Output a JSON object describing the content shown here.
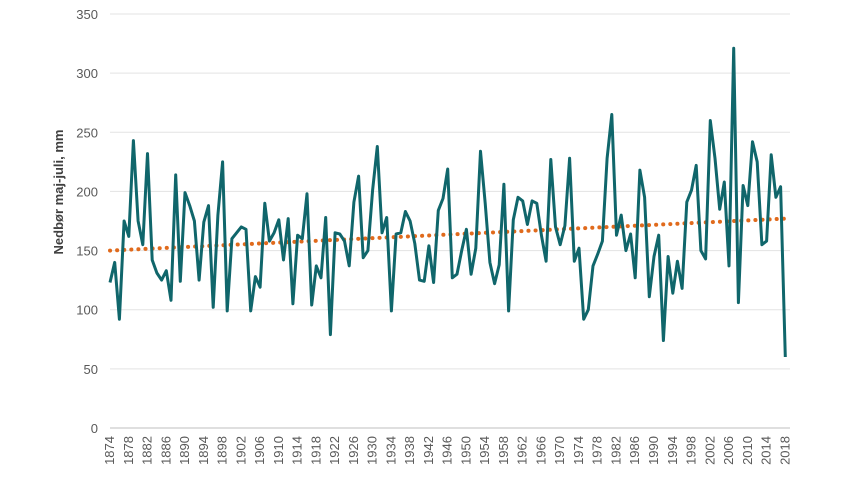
{
  "chart_data": {
    "type": "line",
    "title": "",
    "xlabel": "",
    "ylabel": "Nedbør maj-juli, mm",
    "ylim": [
      0,
      350
    ],
    "yticks": [
      0,
      50,
      100,
      150,
      200,
      250,
      300,
      350
    ],
    "xtick_labels": [
      "1874",
      "1878",
      "1882",
      "1886",
      "1890",
      "1894",
      "1898",
      "1902",
      "1906",
      "1910",
      "1914",
      "1918",
      "1922",
      "1926",
      "1930",
      "1934",
      "1938",
      "1942",
      "1946",
      "1950",
      "1954",
      "1958",
      "1962",
      "1966",
      "1970",
      "1974",
      "1978",
      "1982",
      "1986",
      "1990",
      "1994",
      "1998",
      "2002",
      "2006",
      "2010",
      "2014",
      "2018"
    ],
    "x_start": 1874,
    "x_end": 2019,
    "legend": "none",
    "colors": {
      "series": "#10666b",
      "trend": "#e06a1c",
      "grid": "#e3e3e3"
    },
    "series": [
      {
        "name": "Nedbør maj-juli",
        "style": "solid",
        "values": [
          123,
          140,
          92,
          175,
          162,
          243,
          175,
          155,
          232,
          142,
          131,
          125,
          133,
          108,
          214,
          124,
          199,
          188,
          175,
          125,
          174,
          188,
          102,
          180,
          225,
          99,
          160,
          165,
          170,
          168,
          99,
          128,
          119,
          190,
          158,
          165,
          176,
          142,
          177,
          105,
          163,
          160,
          198,
          104,
          137,
          127,
          178,
          79,
          165,
          164,
          158,
          137,
          191,
          213,
          144,
          150,
          201,
          238,
          165,
          178,
          99,
          164,
          165,
          183,
          175,
          156,
          125,
          124,
          154,
          123,
          184,
          194,
          219,
          127,
          130,
          150,
          168,
          130,
          152,
          234,
          190,
          140,
          122,
          138,
          206,
          99,
          176,
          195,
          192,
          172,
          192,
          190,
          163,
          141,
          227,
          170,
          155,
          171,
          228,
          141,
          152,
          92,
          100,
          137,
          147,
          158,
          228,
          265,
          163,
          180,
          150,
          164,
          127,
          218,
          195,
          111,
          145,
          163,
          74,
          145,
          114,
          141,
          118,
          191,
          201,
          222,
          150,
          143,
          260,
          228,
          185,
          208,
          137,
          321,
          106,
          205,
          188,
          242,
          225,
          155,
          158,
          231,
          195,
          204,
          60
        ]
      },
      {
        "name": "Trend",
        "style": "dotted",
        "start_value": 150,
        "end_value": 177
      }
    ]
  }
}
